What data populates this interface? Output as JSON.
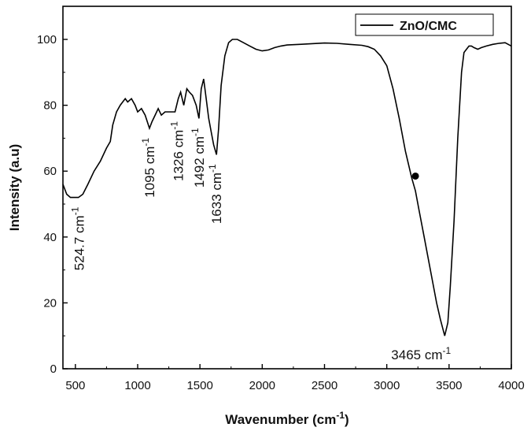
{
  "chart_data": {
    "type": "line",
    "title": "",
    "xlabel": "Wavenumber (cm⁻¹)",
    "ylabel": "Intensity (a.u)",
    "xlim": [
      400,
      4000
    ],
    "ylim": [
      0,
      110
    ],
    "xticks": [
      500,
      1000,
      1500,
      2000,
      2500,
      3000,
      3500,
      4000
    ],
    "yticks": [
      0,
      20,
      40,
      60,
      80,
      100
    ],
    "grid": false,
    "legend_position": "top-right",
    "series": [
      {
        "name": "ZnO/CMC",
        "color": "#000000",
        "x": [
          400,
          430,
          460,
          490,
          524.7,
          560,
          600,
          650,
          700,
          750,
          780,
          800,
          830,
          860,
          880,
          900,
          920,
          950,
          980,
          1000,
          1030,
          1060,
          1095,
          1115,
          1140,
          1165,
          1190,
          1220,
          1260,
          1300,
          1326,
          1345,
          1370,
          1395,
          1415,
          1440,
          1470,
          1492,
          1510,
          1530,
          1550,
          1570,
          1590,
          1610,
          1633,
          1650,
          1670,
          1700,
          1730,
          1760,
          1800,
          1850,
          1900,
          1950,
          2000,
          2050,
          2100,
          2150,
          2200,
          2300,
          2400,
          2500,
          2600,
          2700,
          2800,
          2850,
          2900,
          2950,
          3000,
          3050,
          3100,
          3150,
          3200,
          3230,
          3260,
          3300,
          3350,
          3400,
          3430,
          3465,
          3490,
          3510,
          3540,
          3570,
          3600,
          3620,
          3640,
          3660,
          3680,
          3700,
          3730,
          3760,
          3800,
          3850,
          3900,
          3950,
          4000
        ],
        "y": [
          56,
          53,
          52,
          52,
          52,
          53,
          56,
          60,
          63,
          67,
          69,
          74,
          78,
          80,
          81,
          82,
          81,
          82,
          80,
          78,
          79,
          77,
          73,
          75,
          77,
          79,
          77,
          78,
          78,
          78,
          82,
          84,
          80,
          85,
          84,
          83,
          80,
          76,
          85,
          88,
          82,
          76,
          72,
          68,
          65,
          73,
          86,
          95,
          99,
          100,
          100,
          99,
          98,
          97,
          96.5,
          96.8,
          97.5,
          98,
          98.3,
          98.5,
          98.7,
          98.9,
          98.8,
          98.5,
          98.2,
          97.8,
          97,
          95,
          92,
          85,
          76,
          66,
          58,
          54,
          48,
          40,
          30,
          20,
          15,
          10,
          14,
          25,
          45,
          70,
          90,
          96,
          97,
          98,
          98,
          97.5,
          97,
          97.5,
          98,
          98.5,
          98.8,
          99,
          98
        ]
      }
    ],
    "marker": {
      "x": 3230,
      "y": 58.5
    },
    "annotations": [
      {
        "base": "524.7 cm",
        "exp": "-1",
        "x": 530,
        "y": 52
      },
      {
        "base": "1095 cm",
        "exp": "-1",
        "x": 1095,
        "y": 73
      },
      {
        "base": "1326 cm",
        "exp": "-1",
        "x": 1326,
        "y": 78
      },
      {
        "base": "1492 cm",
        "exp": "-1",
        "x": 1492,
        "y": 76
      },
      {
        "base": "1633 cm",
        "exp": "-1",
        "x": 1633,
        "y": 65
      },
      {
        "base": "3465 cm",
        "exp": "-1",
        "x": 3465,
        "y": 10
      }
    ]
  }
}
